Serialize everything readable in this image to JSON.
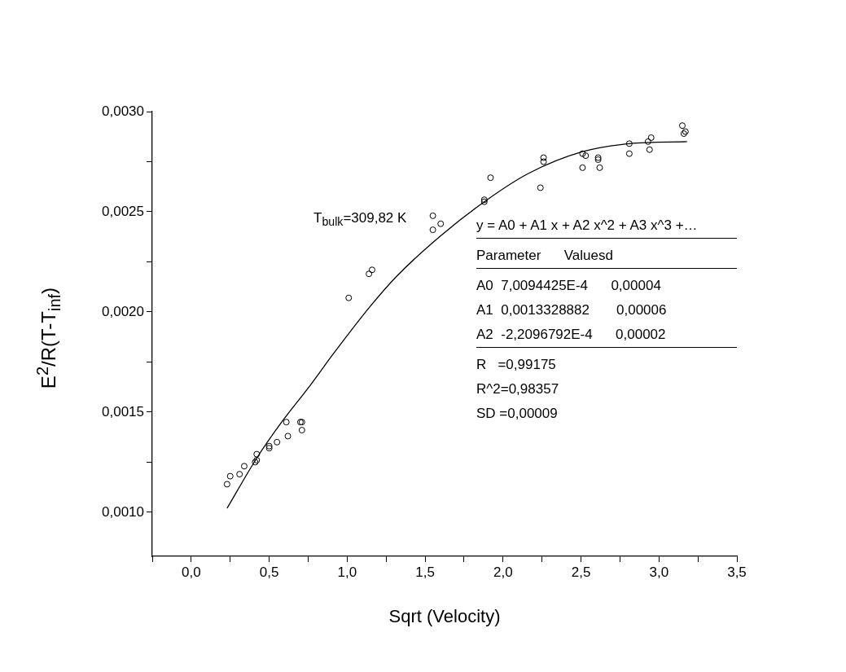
{
  "chart_data": {
    "type": "scatter",
    "xlabel": "Sqrt (Velocity)",
    "ylabel": "E$^{2}$/R(T-T$_{inf}$)",
    "xlim": [
      -0.25,
      3.5
    ],
    "ylim": [
      0.00078,
      0.003
    ],
    "xticks": [
      {
        "value": -0.25,
        "label": null
      },
      {
        "value": 0,
        "label": "0,0"
      },
      {
        "value": 0.25,
        "label": null
      },
      {
        "value": 0.5,
        "label": "0,5"
      },
      {
        "value": 0.75,
        "label": null
      },
      {
        "value": 1,
        "label": "1,0"
      },
      {
        "value": 1.25,
        "label": null
      },
      {
        "value": 1.5,
        "label": "1,5"
      },
      {
        "value": 1.75,
        "label": null
      },
      {
        "value": 2,
        "label": "2,0"
      },
      {
        "value": 2.25,
        "label": null
      },
      {
        "value": 2.5,
        "label": "2,5"
      },
      {
        "value": 2.75,
        "label": null
      },
      {
        "value": 3,
        "label": "3,0"
      },
      {
        "value": 3.25,
        "label": null
      },
      {
        "value": 3.5,
        "label": "3,5"
      }
    ],
    "yticks": [
      {
        "value": 0.001,
        "label": "0,0010"
      },
      {
        "value": 0.00125,
        "label": null
      },
      {
        "value": 0.0015,
        "label": "0,0015"
      },
      {
        "value": 0.00175,
        "label": null
      },
      {
        "value": 0.002,
        "label": "0,0020"
      },
      {
        "value": 0.00225,
        "label": null
      },
      {
        "value": 0.0025,
        "label": "0,0025"
      },
      {
        "value": 0.00275,
        "label": null
      },
      {
        "value": 0.003,
        "label": "0,0030"
      }
    ],
    "grid": false,
    "legend": false,
    "marker": "circle",
    "series": [
      {
        "type": "scatter",
        "color": "#000000",
        "x": [
          0.23,
          0.25,
          0.31,
          0.34,
          0.41,
          0.42,
          0.42,
          0.5,
          0.5,
          0.55,
          0.62,
          0.61,
          0.7,
          0.71,
          0.71,
          1.01,
          1.14,
          1.16,
          1.55,
          1.55,
          1.6,
          1.88,
          1.88,
          1.92,
          2.24,
          2.26,
          2.26,
          2.51,
          2.53,
          2.51,
          2.61,
          2.61,
          2.62,
          2.81,
          2.81,
          2.93,
          2.95,
          2.94,
          3.15,
          3.17,
          3.16
        ],
        "values": [
          0.00114,
          0.00118,
          0.00119,
          0.00123,
          0.00125,
          0.00126,
          0.00129,
          0.00133,
          0.00132,
          0.00135,
          0.00138,
          0.00145,
          0.00145,
          0.00141,
          0.00145,
          0.00207,
          0.00219,
          0.00221,
          0.00248,
          0.00241,
          0.00244,
          0.00256,
          0.00255,
          0.00267,
          0.00262,
          0.00277,
          0.00275,
          0.00279,
          0.00278,
          0.00272,
          0.00277,
          0.00276,
          0.00272,
          0.00284,
          0.00279,
          0.00285,
          0.00287,
          0.00281,
          0.00293,
          0.0029,
          0.00289
        ]
      },
      {
        "type": "line",
        "color": "#000000",
        "marker": "none",
        "line_style": "solid",
        "x": [
          0.23,
          0.42,
          0.58,
          0.75,
          0.92,
          1.15,
          1.32,
          1.6,
          1.88,
          2.16,
          2.51,
          2.81,
          3.18
        ],
        "values": [
          0.00102,
          0.00127,
          0.00145,
          0.00162,
          0.0018,
          0.00203,
          0.00218,
          0.00238,
          0.00255,
          0.00269,
          0.0028,
          0.00284,
          0.00285
        ]
      }
    ],
    "annotations": [
      "T$_{bulk}$=309,82 K",
      "y = A0 + A1 x + A2 x^2 + A3 x^3 +…",
      "Parameter      Valuesd",
      "A0  7,0094425E-4      0,00004",
      "A1  0,0013328882       0,00006",
      "A2  -2,2096792E-4      0,00002",
      "R   =0,99175",
      "R^2=0,98357",
      "SD =0,00009"
    ]
  }
}
